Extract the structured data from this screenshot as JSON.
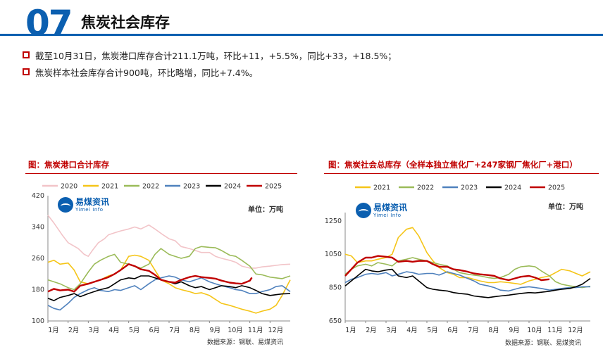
{
  "header": {
    "number": "07",
    "title": "焦炭社会库存"
  },
  "bullets": [
    "截至10月31日，焦炭港口库存合计211.1万吨，环比+11，+5.5%，同比+33，+18.5%；",
    "焦炭样本社会库存合计900吨，环比略增，同比+7.4%。"
  ],
  "logo": {
    "cn": "易煤资讯",
    "en": "Yimei Info"
  },
  "left_panel": {
    "title": "图：焦炭港口合计库存",
    "unit": "单位：万吨",
    "source": "数据来源：钢联、易煤资讯"
  },
  "right_panel": {
    "title": "图：焦炭社会总库存（全样本独立焦化厂+247家钢厂焦化厂+港口）",
    "unit": "单位：万吨",
    "source": "数据来源：钢联、易煤资讯"
  },
  "colors": {
    "2020": "#f2c4c8",
    "2021": "#f5c518",
    "2022": "#9bbb59",
    "2023": "#4f81bd",
    "2024": "#000000",
    "2025": "#c00000"
  },
  "chart_data": [
    {
      "type": "line",
      "title": "图：焦炭港口合计库存",
      "xlabel": "",
      "ylabel": "万吨",
      "x_ticks": [
        "1月",
        "2月",
        "3月",
        "4月",
        "5月",
        "6月",
        "7月",
        "8月",
        "9月",
        "10月",
        "11月",
        "12月"
      ],
      "ylim": [
        100,
        420
      ],
      "y_ticks": [
        100,
        180,
        260,
        340,
        420
      ],
      "x_range": [
        1,
        13
      ],
      "series": [
        {
          "name": "2020",
          "x": [
            1,
            1.3,
            1.7,
            2,
            2.5,
            2.8,
            3,
            3.2,
            3.5,
            3.8,
            4,
            4.3,
            4.6,
            5,
            5.3,
            5.6,
            6,
            6.3,
            6.7,
            7,
            7.3,
            7.6,
            8,
            8.3,
            8.6,
            9,
            9.3,
            9.6,
            10,
            10.3,
            10.6,
            11,
            11.3,
            11.6,
            12,
            12.3,
            12.6,
            13
          ],
          "values": [
            370,
            350,
            320,
            300,
            285,
            270,
            265,
            280,
            300,
            310,
            320,
            325,
            330,
            335,
            340,
            335,
            345,
            335,
            320,
            310,
            305,
            290,
            285,
            280,
            275,
            275,
            265,
            260,
            255,
            250,
            240,
            235,
            235,
            238,
            240,
            242,
            244,
            245
          ]
        },
        {
          "name": "2021",
          "x": [
            1,
            1.3,
            1.6,
            2,
            2.3,
            2.6,
            3,
            3.3,
            3.6,
            4,
            4.3,
            4.6,
            5,
            5.3,
            5.6,
            6,
            6.3,
            6.6,
            7,
            7.3,
            7.6,
            8,
            8.3,
            8.6,
            9,
            9.3,
            9.6,
            10,
            10.3,
            10.6,
            11,
            11.3,
            11.6,
            12,
            12.3,
            12.6,
            13
          ],
          "values": [
            250,
            255,
            245,
            248,
            230,
            200,
            195,
            200,
            205,
            215,
            220,
            230,
            265,
            268,
            265,
            255,
            230,
            205,
            195,
            185,
            180,
            175,
            170,
            172,
            165,
            155,
            145,
            140,
            135,
            130,
            125,
            120,
            125,
            130,
            140,
            165,
            205
          ]
        },
        {
          "name": "2022",
          "x": [
            1,
            1.3,
            1.6,
            2,
            2.3,
            2.6,
            3,
            3.3,
            3.6,
            4,
            4.3,
            4.6,
            5,
            5.3,
            5.6,
            6,
            6.3,
            6.6,
            7,
            7.3,
            7.6,
            8,
            8.3,
            8.6,
            9,
            9.3,
            9.6,
            10,
            10.3,
            10.6,
            11,
            11.3,
            11.6,
            12,
            12.3,
            12.6,
            13
          ],
          "values": [
            205,
            200,
            195,
            185,
            180,
            195,
            225,
            245,
            255,
            265,
            270,
            250,
            245,
            240,
            235,
            245,
            270,
            285,
            270,
            265,
            260,
            265,
            285,
            290,
            288,
            287,
            280,
            268,
            265,
            255,
            240,
            220,
            218,
            212,
            210,
            208,
            215
          ]
        },
        {
          "name": "2023",
          "x": [
            1,
            1.3,
            1.6,
            2,
            2.3,
            2.6,
            3,
            3.3,
            3.6,
            4,
            4.3,
            4.6,
            5,
            5.3,
            5.6,
            6,
            6.3,
            6.6,
            7,
            7.3,
            7.6,
            8,
            8.3,
            8.6,
            9,
            9.3,
            9.6,
            10,
            10.3,
            10.6,
            11,
            11.3,
            11.6,
            12,
            12.3,
            12.6,
            13
          ],
          "values": [
            140,
            132,
            128,
            145,
            160,
            170,
            180,
            185,
            178,
            175,
            180,
            178,
            185,
            190,
            180,
            195,
            205,
            210,
            215,
            212,
            205,
            200,
            205,
            210,
            200,
            195,
            190,
            185,
            180,
            178,
            170,
            170,
            175,
            180,
            188,
            190,
            175
          ]
        },
        {
          "name": "2024",
          "x": [
            1,
            1.3,
            1.6,
            2,
            2.3,
            2.6,
            3,
            3.3,
            3.6,
            4,
            4.3,
            4.6,
            5,
            5.3,
            5.6,
            6,
            6.3,
            6.6,
            7,
            7.3,
            7.6,
            8,
            8.3,
            8.6,
            9,
            9.3,
            9.6,
            10,
            10.3,
            10.6,
            11,
            11.3,
            11.6,
            12,
            12.3,
            12.6,
            13
          ],
          "values": [
            158,
            152,
            160,
            165,
            170,
            162,
            170,
            175,
            180,
            185,
            195,
            205,
            210,
            208,
            215,
            215,
            210,
            205,
            200,
            195,
            200,
            190,
            185,
            188,
            180,
            185,
            190,
            188,
            185,
            190,
            185,
            178,
            170,
            165,
            167,
            169,
            170
          ]
        },
        {
          "name": "2025",
          "x": [
            1,
            1.3,
            1.6,
            2,
            2.3,
            2.6,
            3,
            3.3,
            3.6,
            4,
            4.3,
            4.6,
            5,
            5.3,
            5.6,
            6,
            6.3,
            6.6,
            7,
            7.3,
            7.6,
            8,
            8.3,
            8.6,
            9,
            9.3,
            9.6,
            10,
            10.3,
            10.6,
            11,
            11.1
          ],
          "values": [
            175,
            182,
            178,
            180,
            175,
            190,
            195,
            200,
            205,
            212,
            220,
            230,
            245,
            240,
            232,
            228,
            218,
            205,
            200,
            198,
            205,
            212,
            215,
            212,
            210,
            208,
            203,
            198,
            196,
            195,
            203,
            211
          ]
        }
      ]
    },
    {
      "type": "line",
      "title": "图：焦炭社会总库存（全样本独立焦化厂+247家钢厂焦化厂+港口）",
      "xlabel": "",
      "ylabel": "万吨",
      "x_ticks": [
        "1月",
        "2月",
        "3月",
        "4月",
        "5月",
        "6月",
        "7月",
        "8月",
        "9月",
        "10月",
        "11月",
        "12月"
      ],
      "ylim": [
        650,
        1300
      ],
      "y_ticks": [
        650,
        850,
        1050,
        1250
      ],
      "x_range": [
        1,
        13
      ],
      "series": [
        {
          "name": "2021",
          "x": [
            1,
            1.3,
            1.6,
            2,
            2.3,
            2.6,
            3,
            3.3,
            3.6,
            4,
            4.3,
            4.6,
            5,
            5.3,
            5.6,
            6,
            6.3,
            6.6,
            7,
            7.3,
            7.6,
            8,
            8.3,
            8.6,
            9,
            9.3,
            9.6,
            10,
            10.3,
            10.6,
            11,
            11.3,
            11.6,
            12,
            12.3,
            12.6,
            13
          ],
          "values": [
            1050,
            1040,
            1000,
            1010,
            1010,
            1020,
            1030,
            1050,
            1150,
            1200,
            1210,
            1160,
            1060,
            1010,
            970,
            940,
            930,
            910,
            910,
            900,
            890,
            880,
            880,
            885,
            880,
            875,
            870,
            890,
            900,
            910,
            920,
            940,
            960,
            950,
            935,
            920,
            945
          ]
        },
        {
          "name": "2022",
          "x": [
            1,
            1.3,
            1.6,
            2,
            2.3,
            2.6,
            3,
            3.3,
            3.6,
            4,
            4.3,
            4.6,
            5,
            5.3,
            5.6,
            6,
            6.3,
            6.6,
            7,
            7.3,
            7.6,
            8,
            8.3,
            8.6,
            9,
            9.3,
            9.6,
            10,
            10.3,
            10.6,
            11,
            11.3,
            11.6,
            12,
            12.3,
            12.6,
            13
          ],
          "values": [
            930,
            960,
            980,
            990,
            980,
            1000,
            990,
            980,
            1010,
            1020,
            1030,
            1020,
            1010,
            1000,
            990,
            980,
            960,
            940,
            930,
            925,
            920,
            910,
            905,
            910,
            930,
            960,
            975,
            980,
            975,
            950,
            920,
            885,
            870,
            860,
            855,
            850,
            858
          ]
        },
        {
          "name": "2023",
          "x": [
            1,
            1.3,
            1.6,
            2,
            2.3,
            2.6,
            3,
            3.3,
            3.6,
            4,
            4.3,
            4.6,
            5,
            5.3,
            5.6,
            6,
            6.3,
            6.6,
            7,
            7.3,
            7.6,
            8,
            8.3,
            8.6,
            9,
            9.3,
            9.6,
            10,
            10.3,
            10.6,
            11,
            11.3,
            11.6,
            12,
            12.3,
            12.6,
            13
          ],
          "values": [
            880,
            900,
            910,
            930,
            935,
            930,
            940,
            920,
            930,
            945,
            940,
            930,
            935,
            935,
            925,
            945,
            935,
            925,
            905,
            890,
            870,
            860,
            850,
            835,
            830,
            840,
            850,
            855,
            850,
            845,
            835,
            840,
            845,
            850,
            850,
            855,
            855
          ]
        },
        {
          "name": "2024",
          "x": [
            1,
            1.3,
            1.6,
            2,
            2.3,
            2.6,
            3,
            3.3,
            3.6,
            4,
            4.3,
            4.6,
            5,
            5.3,
            5.6,
            6,
            6.3,
            6.6,
            7,
            7.3,
            7.6,
            8,
            8.3,
            8.6,
            9,
            9.3,
            9.6,
            10,
            10.3,
            10.6,
            11,
            11.3,
            11.6,
            12,
            12.3,
            12.6,
            13
          ],
          "values": [
            860,
            890,
            920,
            960,
            950,
            945,
            955,
            960,
            920,
            910,
            920,
            890,
            850,
            840,
            835,
            830,
            820,
            815,
            810,
            800,
            795,
            790,
            795,
            800,
            805,
            810,
            815,
            820,
            818,
            822,
            828,
            835,
            840,
            845,
            855,
            870,
            905
          ]
        },
        {
          "name": "2025",
          "x": [
            1,
            1.3,
            1.6,
            2,
            2.3,
            2.6,
            3,
            3.3,
            3.6,
            4,
            4.3,
            4.6,
            5,
            5.3,
            5.6,
            6,
            6.3,
            6.6,
            7,
            7.3,
            7.6,
            8,
            8.3,
            8.6,
            9,
            9.3,
            9.6,
            10,
            10.3,
            10.6,
            11
          ],
          "values": [
            920,
            960,
            1000,
            1030,
            1030,
            1040,
            1035,
            1030,
            1005,
            1010,
            1005,
            1010,
            1010,
            990,
            975,
            975,
            960,
            955,
            945,
            935,
            930,
            925,
            920,
            905,
            895,
            905,
            915,
            920,
            910,
            895,
            900
          ]
        }
      ]
    }
  ]
}
